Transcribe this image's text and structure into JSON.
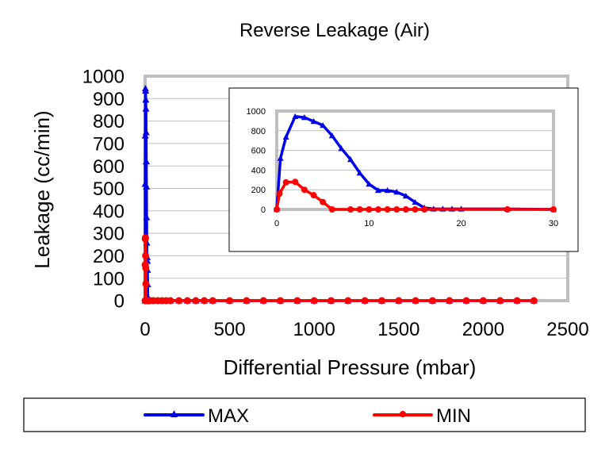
{
  "chart_data": [
    {
      "type": "line",
      "title": "Reverse Leakage (Air)",
      "xlabel": "Differential Pressure (mbar)",
      "ylabel": "Leakage (cc/min)",
      "xlim": [
        0,
        2500
      ],
      "ylim": [
        0,
        1000
      ],
      "xticks": [
        "0",
        "500",
        "1000",
        "1500",
        "2000",
        "2500"
      ],
      "yticks": [
        "0",
        "100",
        "200",
        "300",
        "400",
        "500",
        "600",
        "700",
        "800",
        "900",
        "1000"
      ],
      "grid": true,
      "legend": "bottom",
      "series": [
        {
          "name": "MAX",
          "color": "#0000e6",
          "marker": "triangle",
          "x": [
            0,
            0.4,
            1,
            2,
            3,
            4,
            5,
            6,
            7,
            8,
            9,
            10,
            11,
            12,
            13,
            14,
            15,
            16,
            17,
            18,
            19,
            20,
            25,
            30,
            50,
            75,
            100,
            125,
            150,
            200,
            250,
            300,
            350,
            400,
            500,
            600,
            700,
            800,
            900,
            1000,
            1100,
            1200,
            1300,
            1400,
            1500,
            1600,
            1700,
            1800,
            1900,
            2000,
            2100,
            2200,
            2300
          ],
          "y": [
            0,
            520,
            735,
            945,
            935,
            895,
            855,
            750,
            620,
            508,
            371,
            258,
            194,
            194,
            177,
            137,
            73,
            16,
            5,
            5,
            5,
            5,
            5,
            0,
            0,
            0,
            0,
            0,
            0,
            0,
            0,
            0,
            0,
            0,
            0,
            0,
            0,
            0,
            0,
            0,
            0,
            0,
            0,
            0,
            0,
            0,
            0,
            0,
            0,
            0,
            0,
            0,
            0
          ]
        },
        {
          "name": "MIN",
          "color": "#ff0000",
          "marker": "circle",
          "x": [
            0,
            0.3,
            1,
            2,
            3,
            4,
            5,
            6,
            8,
            9,
            10,
            11,
            12,
            13,
            14,
            15,
            16,
            25,
            30,
            50,
            75,
            100,
            125,
            150,
            200,
            250,
            300,
            350,
            400,
            500,
            600,
            700,
            800,
            900,
            1000,
            1100,
            1200,
            1300,
            1400,
            1500,
            1600,
            1700,
            1800,
            1900,
            2000,
            2100,
            2200,
            2300
          ],
          "y": [
            0,
            160,
            275,
            280,
            200,
            145,
            75,
            0,
            0,
            0,
            0,
            0,
            0,
            0,
            0,
            0,
            0,
            0,
            0,
            0,
            0,
            0,
            0,
            0,
            0,
            0,
            0,
            0,
            0,
            0,
            0,
            0,
            0,
            0,
            0,
            0,
            0,
            0,
            0,
            0,
            0,
            0,
            0,
            0,
            0,
            0,
            0,
            0
          ]
        }
      ]
    },
    {
      "type": "line",
      "title": "",
      "xlim": [
        0,
        30
      ],
      "ylim": [
        0,
        1000
      ],
      "xticks": [
        "0",
        "10",
        "20",
        "30"
      ],
      "yticks": [
        "0",
        "200",
        "400",
        "600",
        "800",
        "1000"
      ],
      "grid": true,
      "series_ref": [
        "MAX",
        "MIN"
      ]
    }
  ]
}
